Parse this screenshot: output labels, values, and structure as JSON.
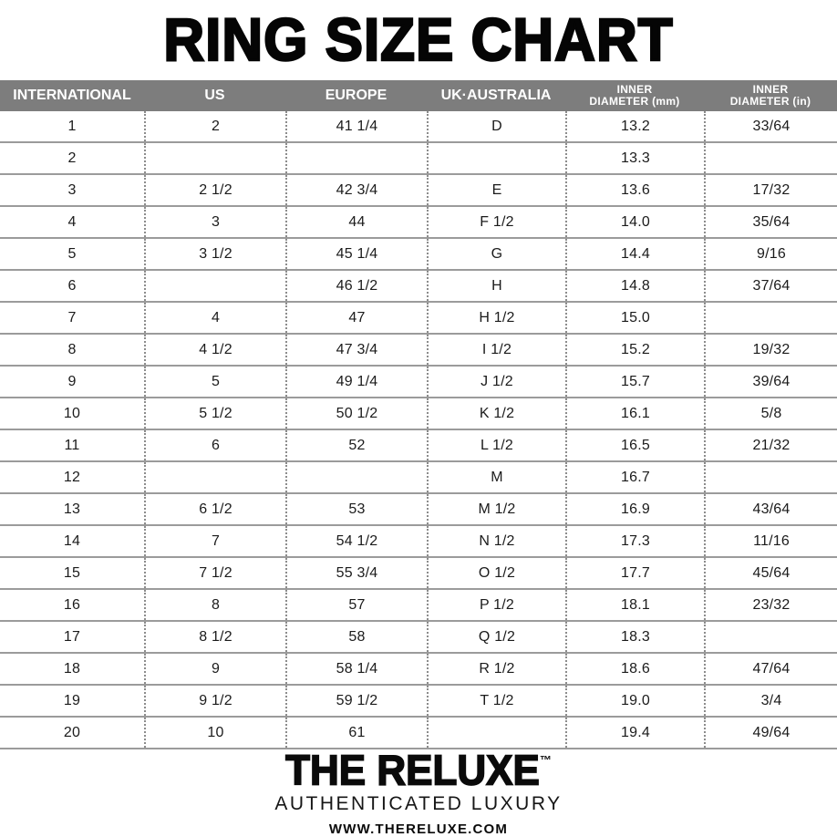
{
  "title": "RING SIZE CHART",
  "chart_data": {
    "type": "table",
    "title": "RING SIZE CHART",
    "columns": [
      {
        "key": "international",
        "label": "INTERNATIONAL"
      },
      {
        "key": "us",
        "label": "US"
      },
      {
        "key": "europe",
        "label": "EUROPE"
      },
      {
        "key": "uk-australia",
        "label": "UK·AUSTRALIA"
      },
      {
        "key": "inner-diameter-mm",
        "label": "INNER\nDIAMETER (mm)"
      },
      {
        "key": "inner-diameter-in",
        "label": "INNER\nDIAMETER (in)"
      }
    ],
    "rows": [
      [
        "1",
        "2",
        "41 1/4",
        "D",
        "13.2",
        "33/64"
      ],
      [
        "2",
        "",
        "",
        "",
        "13.3",
        ""
      ],
      [
        "3",
        "2 1/2",
        "42 3/4",
        "E",
        "13.6",
        "17/32"
      ],
      [
        "4",
        "3",
        "44",
        "F 1/2",
        "14.0",
        "35/64"
      ],
      [
        "5",
        "3 1/2",
        "45 1/4",
        "G",
        "14.4",
        "9/16"
      ],
      [
        "6",
        "",
        "46 1/2",
        "H",
        "14.8",
        "37/64"
      ],
      [
        "7",
        "4",
        "47",
        "H 1/2",
        "15.0",
        ""
      ],
      [
        "8",
        "4 1/2",
        "47 3/4",
        "I 1/2",
        "15.2",
        "19/32"
      ],
      [
        "9",
        "5",
        "49 1/4",
        "J 1/2",
        "15.7",
        "39/64"
      ],
      [
        "10",
        "5 1/2",
        "50 1/2",
        "K 1/2",
        "16.1",
        "5/8"
      ],
      [
        "11",
        "6",
        "52",
        "L 1/2",
        "16.5",
        "21/32"
      ],
      [
        "12",
        "",
        "",
        "M",
        "16.7",
        ""
      ],
      [
        "13",
        "6 1/2",
        "53",
        "M 1/2",
        "16.9",
        "43/64"
      ],
      [
        "14",
        "7",
        "54 1/2",
        "N 1/2",
        "17.3",
        "11/16"
      ],
      [
        "15",
        "7 1/2",
        "55 3/4",
        "O 1/2",
        "17.7",
        "45/64"
      ],
      [
        "16",
        "8",
        "57",
        "P 1/2",
        "18.1",
        "23/32"
      ],
      [
        "17",
        "8 1/2",
        "58",
        "Q 1/2",
        "18.3",
        ""
      ],
      [
        "18",
        "9",
        "58 1/4",
        "R 1/2",
        "18.6",
        "47/64"
      ],
      [
        "19",
        "9 1/2",
        "59 1/2",
        "T 1/2",
        "19.0",
        "3/4"
      ],
      [
        "20",
        "10",
        "61",
        "",
        "19.4",
        "49/64"
      ]
    ]
  },
  "footer": {
    "brand": "THE RELUXE",
    "trademark": "™",
    "tagline": "AUTHENTICATED LUXURY",
    "website": "WWW.THERELUXE.COM"
  },
  "colors": {
    "header_background": "#7d7d7d",
    "header_text": "#ffffff",
    "row_divider": "#9b9b9b",
    "column_dotted_divider": "#8c8c8c",
    "text": "#1b1b1b"
  }
}
